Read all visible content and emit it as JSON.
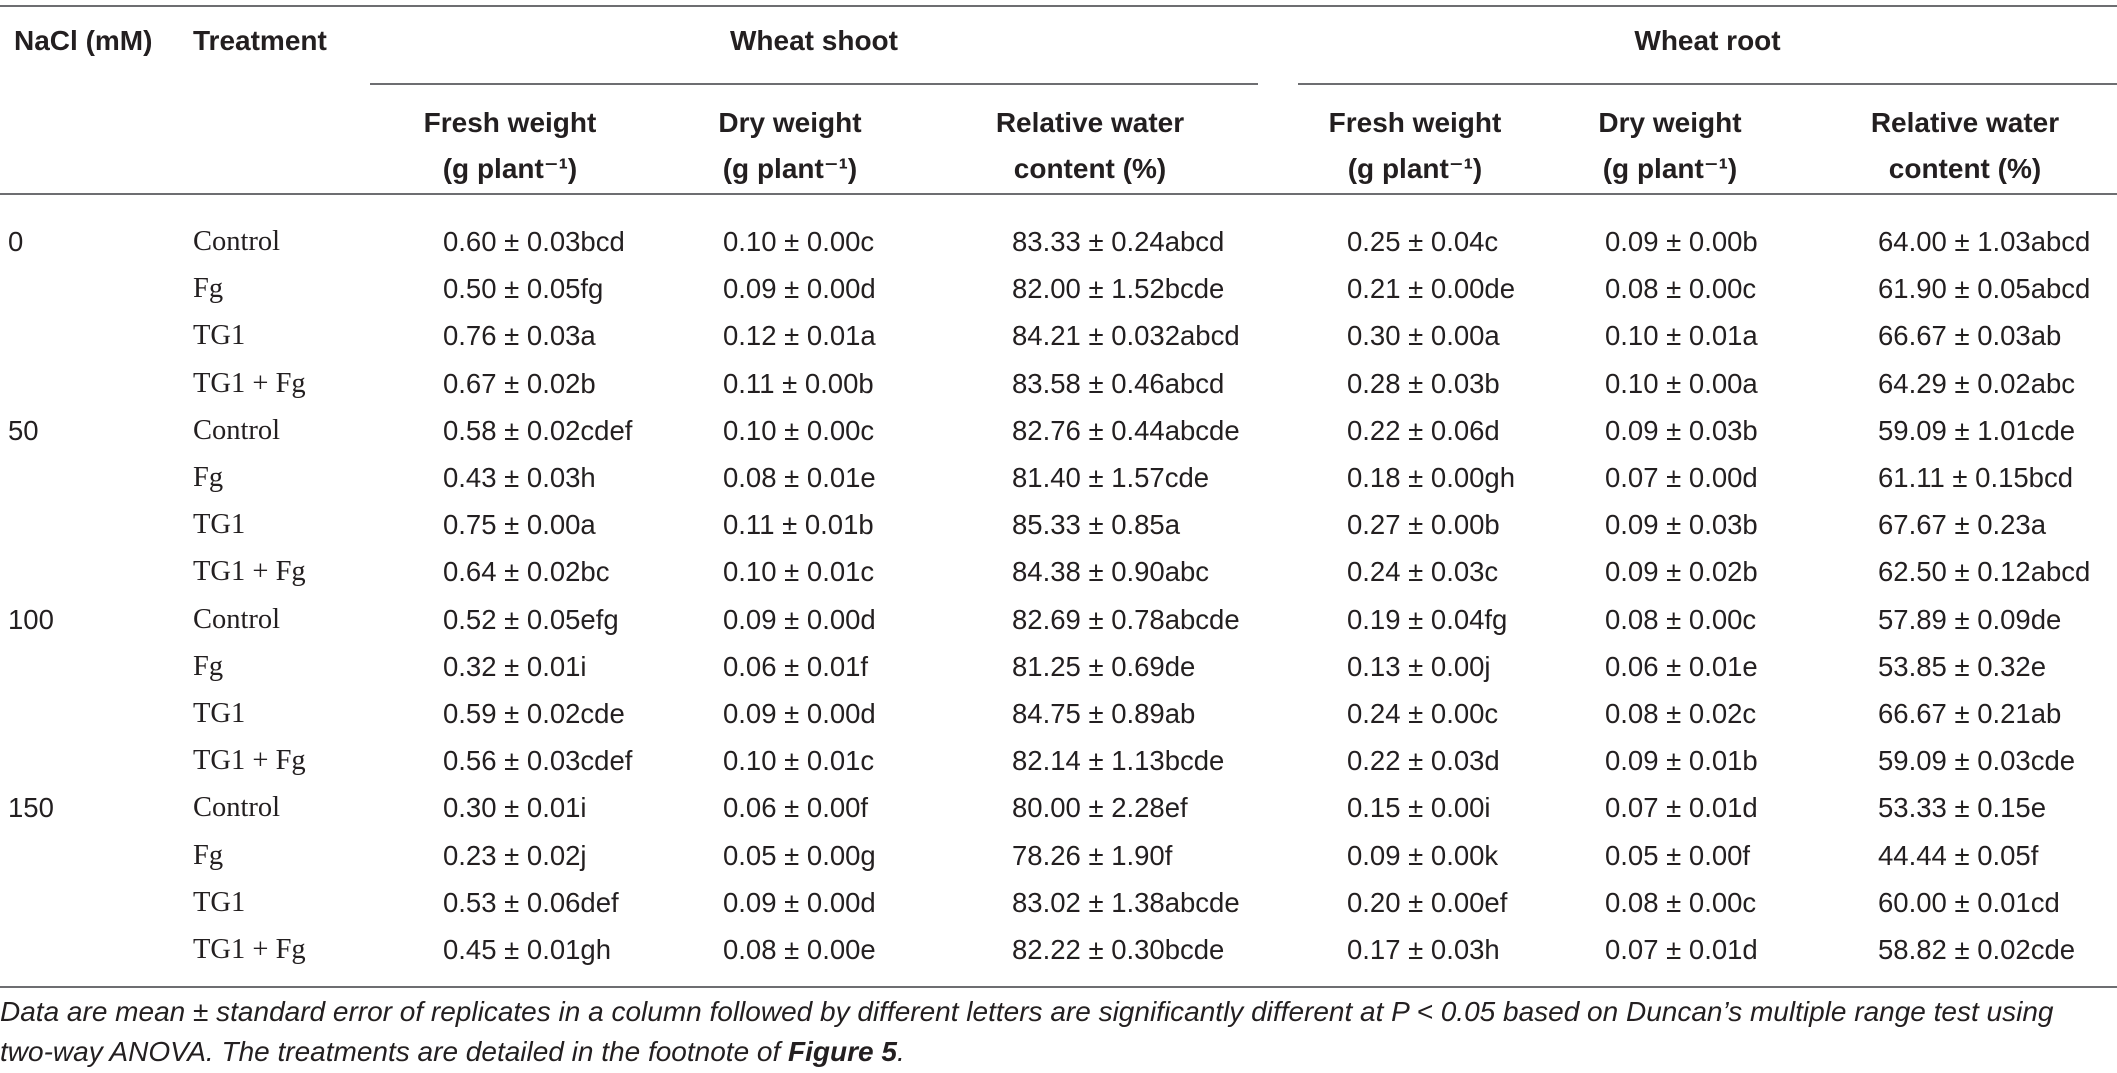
{
  "header": {
    "nacl": "NaCl (mM)",
    "treatment": "Treatment",
    "group_shoot": "Wheat shoot",
    "group_root": "Wheat root",
    "shoot_fresh": [
      "Fresh weight",
      "(g plant⁻¹)"
    ],
    "shoot_dry": [
      "Dry weight",
      "(g plant⁻¹)"
    ],
    "shoot_rwc": [
      "Relative water",
      "content (%)"
    ],
    "root_fresh": [
      "Fresh weight",
      "(g plant⁻¹)"
    ],
    "root_dry": [
      "Dry weight",
      "(g plant⁻¹)"
    ],
    "root_rwc": [
      "Relative water",
      "content (%)"
    ]
  },
  "rows": [
    {
      "nacl": "0",
      "treatment": "Control",
      "sf": "0.60 ± 0.03bcd",
      "sd": "0.10 ± 0.00c",
      "sr": "83.33 ± 0.24abcd",
      "rf": "0.25 ± 0.04c",
      "rd": "0.09 ± 0.00b",
      "rr": "64.00 ± 1.03abcd"
    },
    {
      "nacl": "",
      "treatment": "Fg",
      "sf": "0.50 ± 0.05fg",
      "sd": "0.09 ± 0.00d",
      "sr": "82.00 ± 1.52bcde",
      "rf": "0.21 ± 0.00de",
      "rd": "0.08 ± 0.00c",
      "rr": "61.90 ± 0.05abcd"
    },
    {
      "nacl": "",
      "treatment": "TG1",
      "sf": "0.76 ± 0.03a",
      "sd": "0.12 ± 0.01a",
      "sr": "84.21 ± 0.032abcd",
      "rf": "0.30 ± 0.00a",
      "rd": "0.10 ± 0.01a",
      "rr": "66.67 ± 0.03ab"
    },
    {
      "nacl": "",
      "treatment": "TG1 + Fg",
      "sf": "0.67 ± 0.02b",
      "sd": "0.11 ± 0.00b",
      "sr": "83.58 ± 0.46abcd",
      "rf": "0.28 ± 0.03b",
      "rd": "0.10 ± 0.00a",
      "rr": "64.29 ± 0.02abc"
    },
    {
      "nacl": "50",
      "treatment": "Control",
      "sf": "0.58 ± 0.02cdef",
      "sd": "0.10 ± 0.00c",
      "sr": "82.76 ± 0.44abcde",
      "rf": "0.22 ± 0.06d",
      "rd": "0.09 ± 0.03b",
      "rr": "59.09 ± 1.01cde"
    },
    {
      "nacl": "",
      "treatment": "Fg",
      "sf": "0.43 ± 0.03h",
      "sd": "0.08 ± 0.01e",
      "sr": "81.40 ± 1.57cde",
      "rf": "0.18 ± 0.00gh",
      "rd": "0.07 ± 0.00d",
      "rr": "61.11 ± 0.15bcd"
    },
    {
      "nacl": "",
      "treatment": "TG1",
      "sf": "0.75 ± 0.00a",
      "sd": "0.11 ± 0.01b",
      "sr": "85.33 ± 0.85a",
      "rf": "0.27 ± 0.00b",
      "rd": "0.09 ± 0.03b",
      "rr": "67.67 ± 0.23a"
    },
    {
      "nacl": "",
      "treatment": "TG1 + Fg",
      "sf": "0.64 ± 0.02bc",
      "sd": "0.10 ± 0.01c",
      "sr": "84.38 ± 0.90abc",
      "rf": "0.24 ± 0.03c",
      "rd": "0.09 ± 0.02b",
      "rr": "62.50 ± 0.12abcd"
    },
    {
      "nacl": "100",
      "treatment": "Control",
      "sf": "0.52 ± 0.05efg",
      "sd": "0.09 ± 0.00d",
      "sr": "82.69 ± 0.78abcde",
      "rf": "0.19 ± 0.04fg",
      "rd": "0.08 ± 0.00c",
      "rr": "57.89 ± 0.09de"
    },
    {
      "nacl": "",
      "treatment": "Fg",
      "sf": "0.32 ± 0.01i",
      "sd": "0.06 ± 0.01f",
      "sr": "81.25 ± 0.69de",
      "rf": "0.13 ± 0.00j",
      "rd": "0.06 ± 0.01e",
      "rr": "53.85 ± 0.32e"
    },
    {
      "nacl": "",
      "treatment": "TG1",
      "sf": "0.59 ± 0.02cde",
      "sd": "0.09 ± 0.00d",
      "sr": "84.75 ± 0.89ab",
      "rf": "0.24 ± 0.00c",
      "rd": "0.08 ± 0.02c",
      "rr": "66.67 ± 0.21ab"
    },
    {
      "nacl": "",
      "treatment": "TG1 + Fg",
      "sf": "0.56 ± 0.03cdef",
      "sd": "0.10 ± 0.01c",
      "sr": "82.14 ± 1.13bcde",
      "rf": "0.22 ± 0.03d",
      "rd": "0.09 ± 0.01b",
      "rr": "59.09 ± 0.03cde"
    },
    {
      "nacl": "150",
      "treatment": "Control",
      "sf": "0.30 ± 0.01i",
      "sd": "0.06 ± 0.00f",
      "sr": "80.00 ± 2.28ef",
      "rf": "0.15 ± 0.00i",
      "rd": "0.07 ± 0.01d",
      "rr": "53.33 ± 0.15e"
    },
    {
      "nacl": "",
      "treatment": "Fg",
      "sf": "0.23 ± 0.02j",
      "sd": "0.05 ± 0.00g",
      "sr": "78.26 ± 1.90f",
      "rf": "0.09 ± 0.00k",
      "rd": "0.05 ± 0.00f",
      "rr": "44.44 ± 0.05f"
    },
    {
      "nacl": "",
      "treatment": "TG1",
      "sf": "0.53 ± 0.06def",
      "sd": "0.09 ± 0.00d",
      "sr": "83.02 ± 1.38abcde",
      "rf": "0.20 ± 0.00ef",
      "rd": "0.08 ± 0.00c",
      "rr": "60.00 ± 0.01cd"
    },
    {
      "nacl": "",
      "treatment": "TG1 + Fg",
      "sf": "0.45 ± 0.01gh",
      "sd": "0.08 ± 0.00e",
      "sr": "82.22 ± 0.30bcde",
      "rf": "0.17 ± 0.03h",
      "rd": "0.07 ± 0.01d",
      "rr": "58.82 ± 0.02cde"
    }
  ],
  "footnote": {
    "line1": "Data are mean ± standard error of replicates in a column followed by different letters are significantly different at P < 0.05 based on Duncan’s multiple range test using",
    "line2_pre": "two-way ANOVA. The treatments are detailed in the footnote of ",
    "line2_ref": "Figure 5",
    "line2_post": "."
  }
}
